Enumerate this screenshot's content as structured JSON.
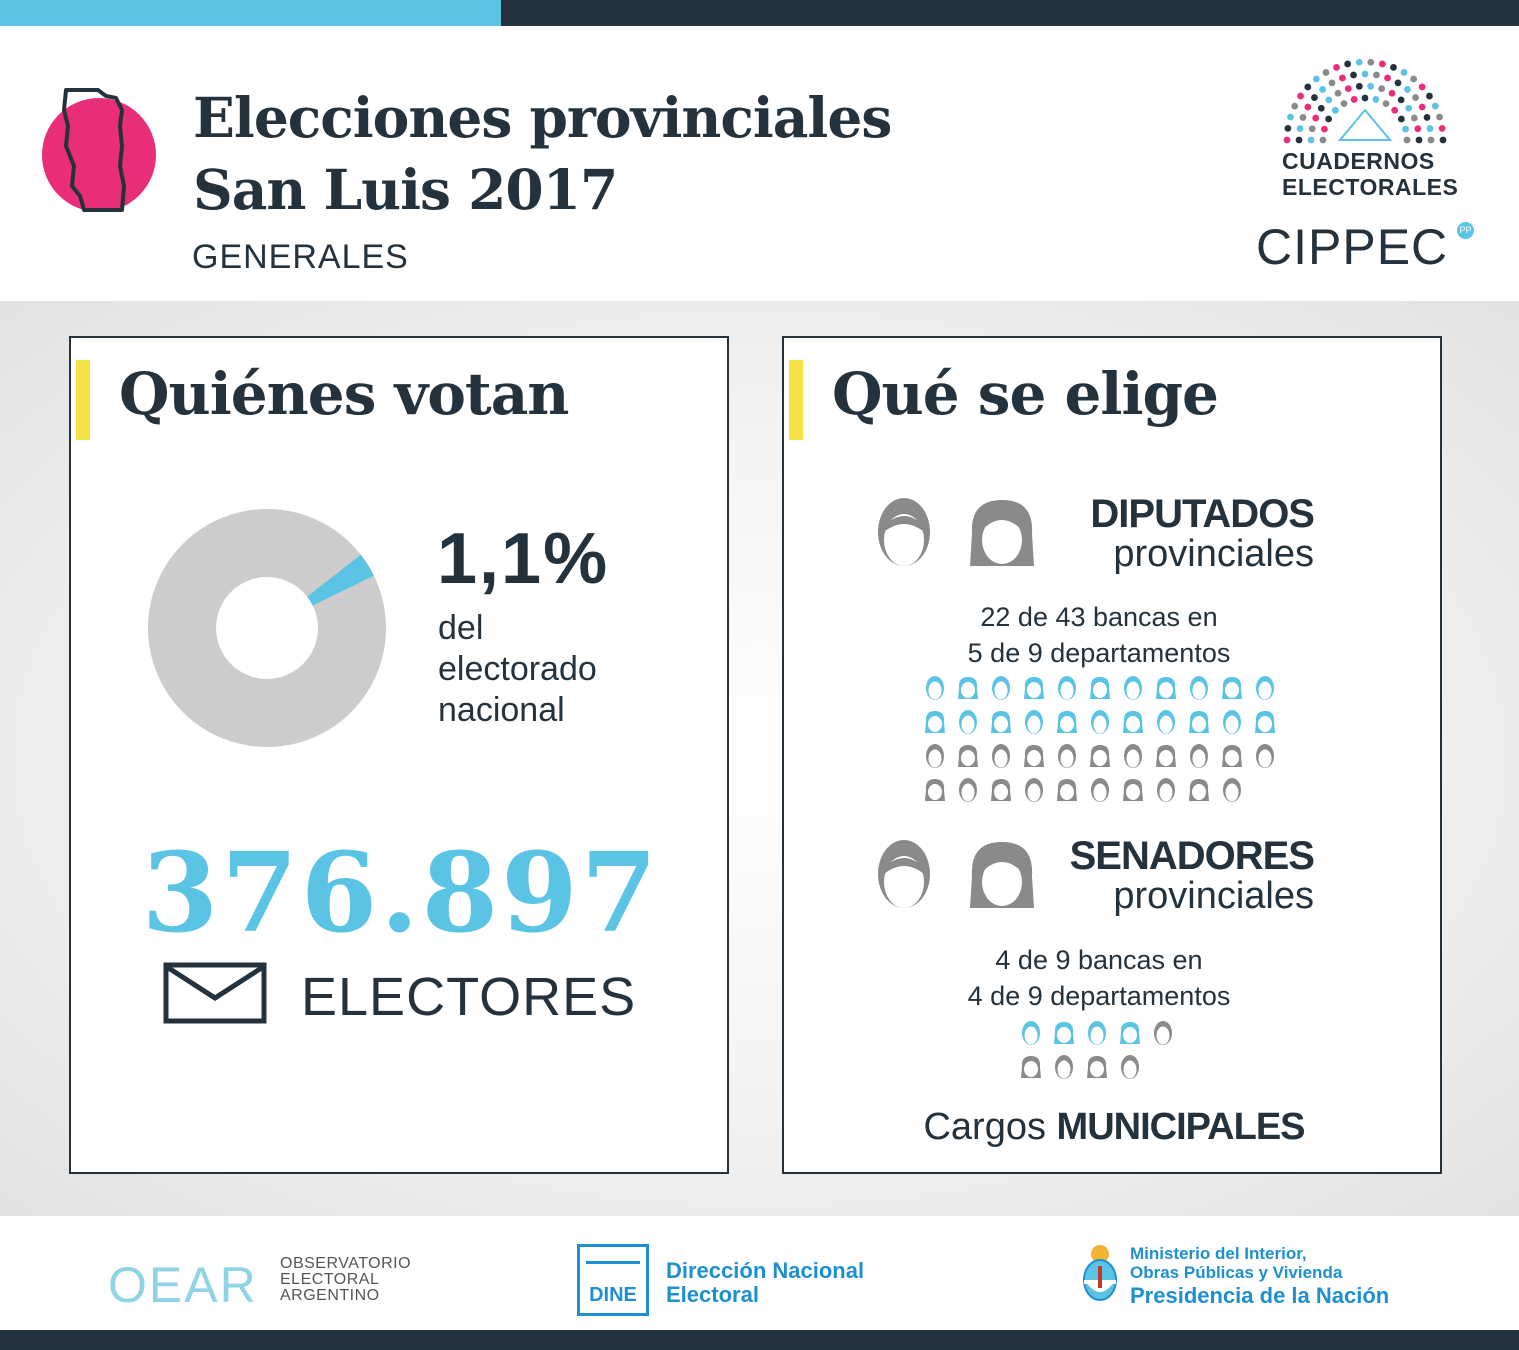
{
  "header": {
    "title_line1": "Elecciones provinciales",
    "title_line2": "San Luis 2017",
    "subtitle": "GENERALES",
    "logo": {
      "cuadernos_line1": "CUADERNOS",
      "cuadernos_line2": "ELECTORALES",
      "cippec": "CIPPEC",
      "cippec_badge": "PP"
    }
  },
  "left_panel": {
    "title": "Quiénes votan",
    "percent": "1,1%",
    "percent_desc": [
      "del",
      "electorado",
      "nacional"
    ],
    "percent_value": 1.1,
    "voters_count": "376.897",
    "voters_label": "ELECTORES"
  },
  "right_panel": {
    "title": "Qué se elige",
    "diputados": {
      "title_bold": "DIPUTADOS",
      "title_light": "provinciales",
      "line1": "22 de 43 bancas en",
      "line2": "5 de 9 departamentos",
      "elected": 22,
      "total": 43
    },
    "senadores": {
      "title_bold": "SENADORES",
      "title_light": "provinciales",
      "line1": "4 de 9 bancas en",
      "line2": "4 de 9 departamentos",
      "elected": 4,
      "total": 9
    },
    "municipales_prefix": "Cargos",
    "municipales_bold": "MUNICIPALES"
  },
  "footer": {
    "oear_mark": "OEAR",
    "oear_text": [
      "OBSERVATORIO",
      "ELECTORAL",
      "ARGENTINO"
    ],
    "dine_mark": "DINE",
    "dine_name": [
      "Dirección Nacional",
      "Electoral"
    ],
    "ministerio_line1": "Ministerio del Interior,",
    "ministerio_line2": "Obras Públicas y Vivienda",
    "ministerio_line3": "Presidencia de la Nación"
  },
  "colors": {
    "blue": "#5bc3e4",
    "dark": "#24323d",
    "pink": "#ea2d78",
    "yellow": "#f7e042",
    "gray": "#8a8a8a",
    "donut_gray": "#cccccc",
    "dine_blue": "#1e8fd0"
  }
}
